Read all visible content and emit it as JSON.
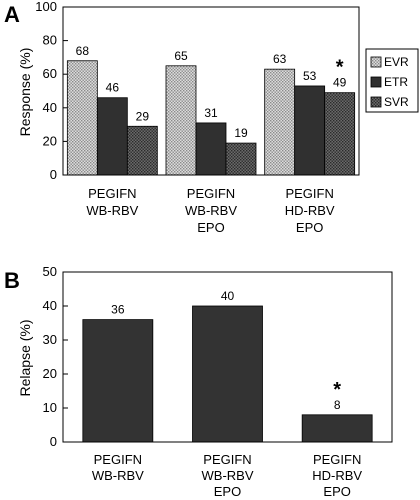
{
  "chart_data": [
    {
      "panel": "A",
      "type": "bar",
      "categories": [
        [
          "PEGIFN",
          "WB-RBV"
        ],
        [
          "PEGIFN",
          "WB-RBV",
          "EPO"
        ],
        [
          "PEGIFN",
          "HD-RBV",
          "EPO"
        ]
      ],
      "series": [
        {
          "name": "EVR",
          "values": [
            68,
            65,
            63
          ],
          "color": "#c8c8c8",
          "pattern": "dots-light"
        },
        {
          "name": "ETR",
          "values": [
            46,
            31,
            53
          ],
          "color": "#303030",
          "pattern": "solid"
        },
        {
          "name": "SVR",
          "values": [
            29,
            19,
            49
          ],
          "color": "#555555",
          "pattern": "dots-dark"
        }
      ],
      "ylabel": "Response (%)",
      "ylim": [
        0,
        100
      ],
      "yticks": [
        0,
        20,
        40,
        60,
        80,
        100
      ],
      "legend": "right",
      "annotations": [
        {
          "text": "*",
          "category_index": 2,
          "series_index": 2
        }
      ]
    },
    {
      "panel": "B",
      "type": "bar",
      "categories": [
        [
          "PEGIFN",
          "WB-RBV"
        ],
        [
          "PEGIFN",
          "WB-RBV",
          "EPO"
        ],
        [
          "PEGIFN",
          "HD-RBV",
          "EPO"
        ]
      ],
      "values": [
        36,
        40,
        8
      ],
      "color": "#333333",
      "ylabel": "Relapse (%)",
      "ylim": [
        0,
        50
      ],
      "yticks": [
        0,
        10,
        20,
        30,
        40,
        50
      ],
      "annotations": [
        {
          "text": "*",
          "category_index": 2
        }
      ]
    }
  ]
}
